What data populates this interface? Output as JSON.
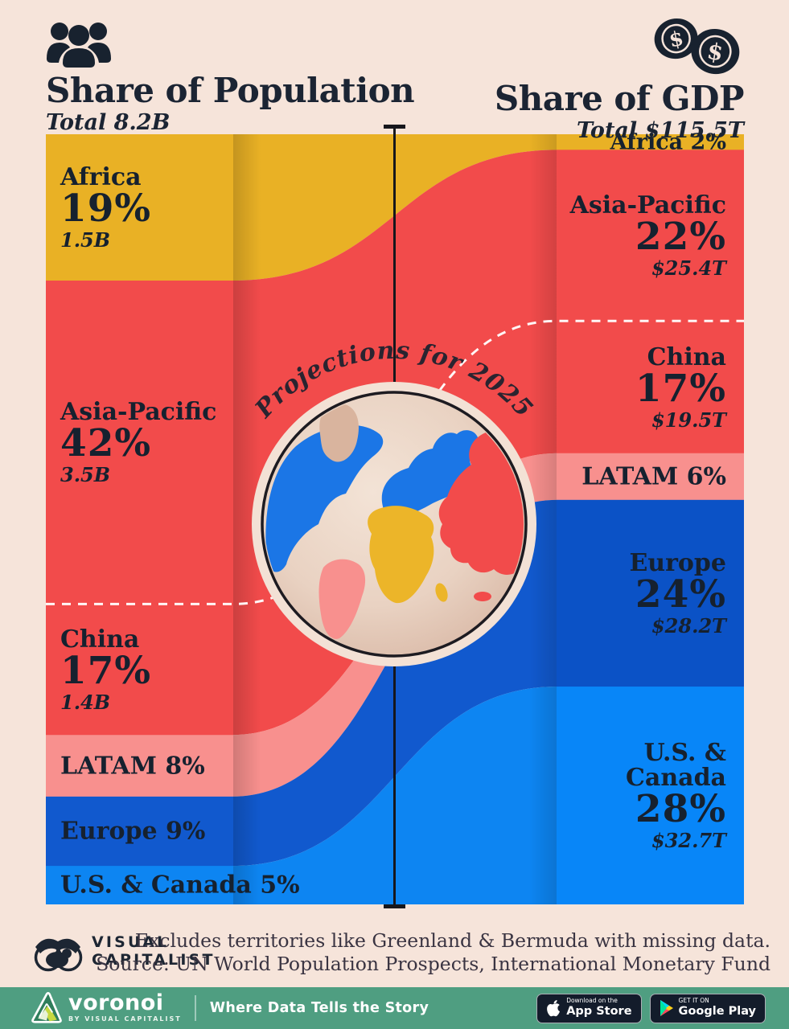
{
  "colors": {
    "background": "#f6e4da",
    "text_dark": "#16212f",
    "dashed_line": "#ffffff",
    "axis_line": "#17171c",
    "bottom_bar_green": "#4f9e81",
    "badge_bg": "#131c2b"
  },
  "header": {
    "population": {
      "title": "Share of Population",
      "total": "Total 8.2B"
    },
    "gdp": {
      "title": "Share of GDP",
      "total": "Total $115.5T"
    }
  },
  "center": {
    "projections_label": "Projections for 2025"
  },
  "chart_data": {
    "type": "sankey",
    "title": "Share of Population vs Share of GDP (Projections for 2025)",
    "left_column": {
      "title": "Share of Population",
      "total": "Total 8.2B"
    },
    "right_column": {
      "title": "Share of GDP",
      "total": "Total $115.5T"
    },
    "categories": [
      "Africa",
      "Asia-Pacific",
      "China",
      "LATAM",
      "Europe",
      "U.S. & Canada"
    ],
    "series": [
      {
        "name": "Share of Population (%)",
        "values": [
          19,
          42,
          17,
          8,
          9,
          5
        ]
      },
      {
        "name": "Share of GDP (%)",
        "values": [
          2,
          22,
          17,
          6,
          24,
          28
        ]
      }
    ],
    "left_segments": [
      {
        "name": "Africa",
        "pct": 19,
        "pct_label": "19%",
        "sub": "1.5B",
        "color": "#e9b125",
        "layout": "block"
      },
      {
        "name": "Asia-Pacific",
        "pct": 42,
        "pct_label": "42%",
        "sub": "3.5B",
        "color": "#f24b4b",
        "layout": "block"
      },
      {
        "name": "China",
        "pct": 17,
        "pct_label": "17%",
        "sub": "1.4B",
        "color": "#f24b4b",
        "layout": "block",
        "dashed_above": true
      },
      {
        "name": "LATAM",
        "pct": 8,
        "pct_label": "8%",
        "color": "#f8908e",
        "layout": "inline"
      },
      {
        "name": "Europe",
        "pct": 9,
        "pct_label": "9%",
        "color": "#1159ce",
        "layout": "inline"
      },
      {
        "name": "U.S. & Canada",
        "pct": 5,
        "pct_label": "5%",
        "color": "#0d85f2",
        "layout": "inline"
      }
    ],
    "right_segments": [
      {
        "name": "Africa",
        "pct": 2,
        "pct_label": "2%",
        "color": "#e9b125",
        "layout": "inline",
        "small": true
      },
      {
        "name": "Asia-Pacific",
        "pct": 22,
        "pct_label": "22%",
        "sub": "$25.4T",
        "color": "#f24b4b",
        "layout": "block"
      },
      {
        "name": "China",
        "pct": 17,
        "pct_label": "17%",
        "sub": "$19.5T",
        "color": "#f24b4b",
        "layout": "block",
        "dashed_above": true
      },
      {
        "name": "LATAM",
        "pct": 6,
        "pct_label": "6%",
        "color": "#f8908e",
        "layout": "inline"
      },
      {
        "name": "Europe",
        "pct": 24,
        "pct_label": "24%",
        "sub": "$28.2T",
        "color": "#0b52c6",
        "layout": "block"
      },
      {
        "name": "U.S. & Canada",
        "pct": 28,
        "pct_label": "28%",
        "sub": "$32.7T",
        "color": "#0886f8",
        "layout": "block",
        "name_lines": [
          "U.S. &",
          "Canada"
        ]
      }
    ]
  },
  "footer": {
    "logo_line1": "VISUAL",
    "logo_line2": "CAPITALIST",
    "note_line1": "Excludes territories like Greenland & Bermuda with missing data.",
    "note_line2": "Source: UN World Population Prospects, International Monetary Fund"
  },
  "bottom_bar": {
    "brand": "voronoi",
    "brand_sub": "BY VISUAL CAPITALIST",
    "tagline": "Where Data Tells the Story",
    "appstore": {
      "top": "Download on the",
      "bottom": "App Store"
    },
    "googleplay": {
      "top": "GET IT ON",
      "bottom": "Google Play"
    }
  }
}
